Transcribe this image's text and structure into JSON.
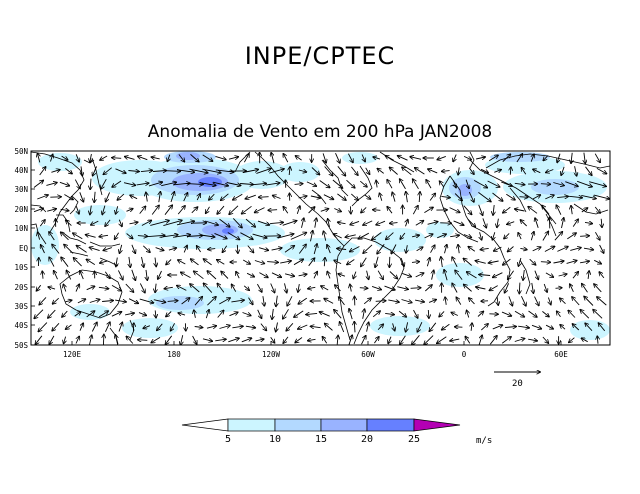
{
  "header": "INPE/CPTEC",
  "title": "Anomalia de Vento em 200 hPa JAN2008",
  "latitude_labels": [
    "50N",
    "40N",
    "30N",
    "20N",
    "10N",
    "EQ",
    "10S",
    "20S",
    "30S",
    "40S",
    "50S"
  ],
  "longitude_labels": [
    "120E",
    "180",
    "120W",
    "60W",
    "0",
    "60E"
  ],
  "reference_vector": {
    "label": "20"
  },
  "colorbar": {
    "labels": [
      "5",
      "10",
      "15",
      "20",
      "25"
    ],
    "unit": "m/s",
    "colors": [
      "#ffffff",
      "#ccf5ff",
      "#b3d9ff",
      "#99b3ff",
      "#6680ff",
      "#b300b3"
    ]
  },
  "colors": {
    "shade1": "#ccf5ff",
    "shade2": "#b3d9ff",
    "shade3": "#99b3ff",
    "shade4": "#6680ff"
  },
  "map": {
    "lon_range": [
      80,
      94
    ],
    "lat_range": [
      -50,
      50
    ]
  }
}
